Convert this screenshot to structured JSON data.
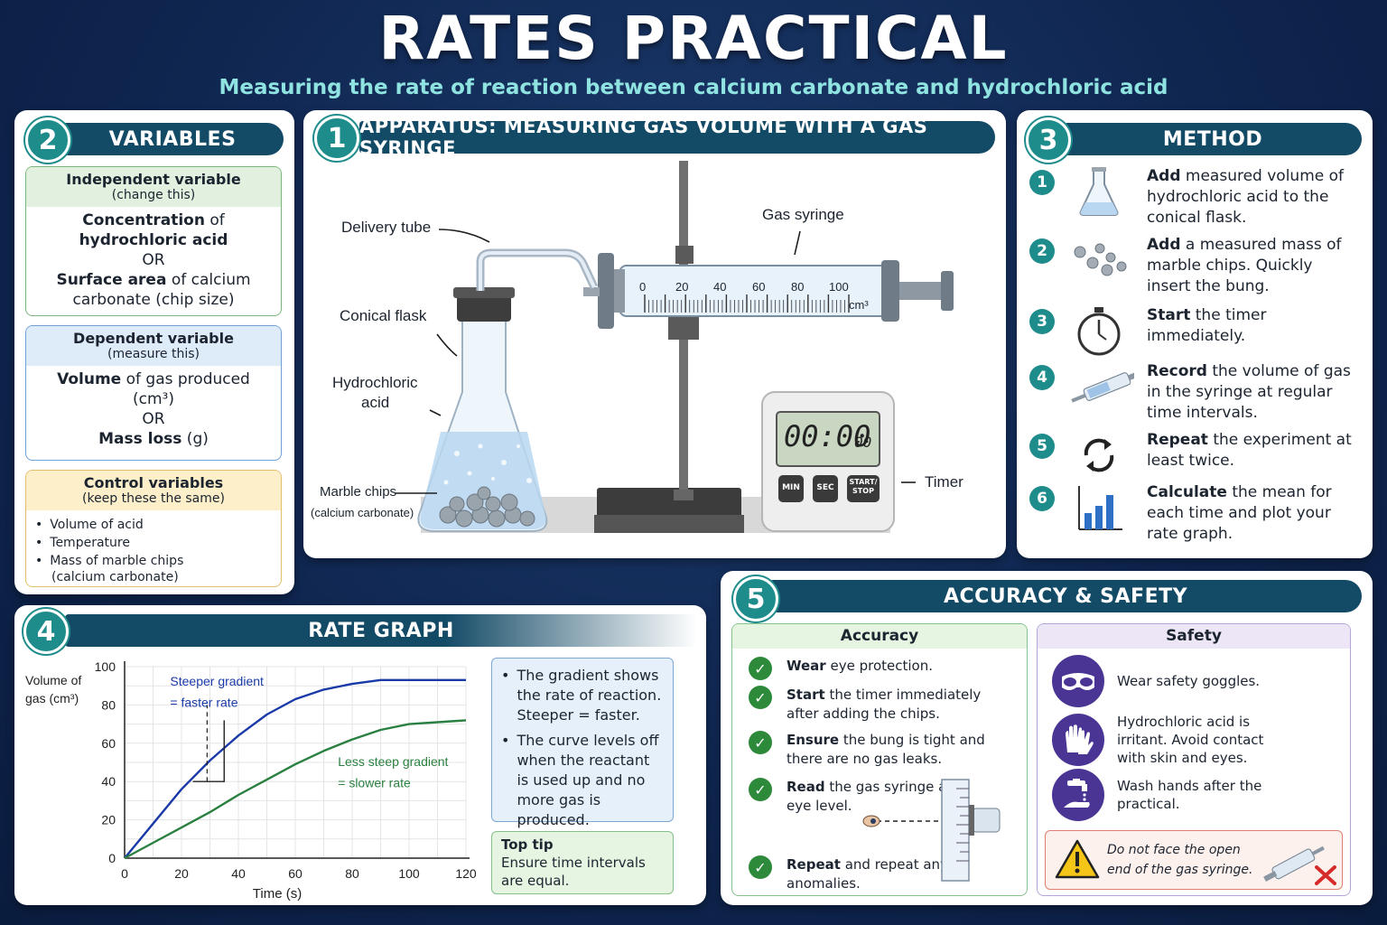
{
  "title": "RATES PRACTICAL",
  "subtitle": "Measuring the rate of reaction between calcium carbonate and hydrochloric acid",
  "variables": {
    "number": "2",
    "heading": "VARIABLES",
    "independent": {
      "title": "Independent variable",
      "sub": "(change this)",
      "l1b": "Concentration",
      "l1": " of",
      "l2b": "hydrochloric acid",
      "l3": "OR",
      "l4b": "Surface area",
      "l4": " of calcium",
      "l5": "carbonate (chip size)"
    },
    "dependent": {
      "title": "Dependent variable",
      "sub": "(measure this)",
      "l1b": "Volume",
      "l1": " of gas produced",
      "l2": "(cm³)",
      "l3": "OR",
      "l4b": "Mass loss",
      "l4": " (g)"
    },
    "control": {
      "title": "Control variables",
      "sub": "(keep these the same)",
      "items": [
        "Volume of acid",
        "Temperature",
        "Mass of marble chips",
        "(calcium carbonate)"
      ]
    }
  },
  "apparatus": {
    "number": "1",
    "heading": "APPARATUS: MEASURING GAS VOLUME WITH A GAS SYRINGE",
    "labels": {
      "delivery_tube": "Delivery tube",
      "gas_syringe": "Gas syringe",
      "conical_flask": "Conical flask",
      "hcl1": "Hydrochloric",
      "hcl2": "acid",
      "marble1": "Marble chips",
      "marble2": "(calcium carbonate)",
      "timer": "Timer"
    },
    "syringe_scale": [
      "0",
      "20",
      "40",
      "60",
      "80",
      "100"
    ],
    "syringe_unit": "cm³",
    "timer_display": "00:00",
    "timer_small": "00",
    "timer_buttons": [
      "MIN",
      "SEC",
      "START/ STOP"
    ]
  },
  "method": {
    "number": "3",
    "heading": "METHOD",
    "steps": [
      {
        "n": "1",
        "bold": "Add",
        "text": " measured volume of hydrochloric acid to the conical flask.",
        "icon": "conical-flask-icon"
      },
      {
        "n": "2",
        "bold": "Add",
        "text": " a measured mass of marble chips. Quickly insert the bung.",
        "icon": "marble-chips-icon"
      },
      {
        "n": "3",
        "bold": "Start",
        "text": " the timer immediately.",
        "icon": "stopwatch-icon"
      },
      {
        "n": "4",
        "bold": "Record",
        "text": " the volume of gas in the syringe at regular time intervals.",
        "icon": "syringe-icon"
      },
      {
        "n": "5",
        "bold": "Repeat",
        "text": " the experiment at least twice.",
        "icon": "repeat-icon"
      },
      {
        "n": "6",
        "bold": "Calculate",
        "text": " the mean for each time and plot your rate graph.",
        "icon": "bar-chart-icon"
      }
    ]
  },
  "rate_graph": {
    "number": "4",
    "heading": "RATE GRAPH",
    "notes": [
      "The gradient shows the rate of reaction. Steeper = faster.",
      "The curve levels off when the reactant is used up and no more gas is produced."
    ],
    "tip_title": "Top tip",
    "tip_text": "Ensure time intervals are equal."
  },
  "chart_data": {
    "type": "line",
    "title": "",
    "xlabel": "Time (s)",
    "ylabel": "Volume of gas (cm³)",
    "xlim": [
      0,
      120
    ],
    "ylim": [
      0,
      100
    ],
    "xticks": [
      0,
      20,
      40,
      60,
      80,
      100,
      120
    ],
    "yticks": [
      0,
      20,
      40,
      60,
      80,
      100
    ],
    "grid": true,
    "series": [
      {
        "name": "Steeper gradient = faster rate",
        "color": "#1a3aa8",
        "x": [
          0,
          10,
          20,
          30,
          40,
          50,
          60,
          70,
          80,
          90,
          100,
          110,
          120
        ],
        "y": [
          0,
          18,
          36,
          51,
          64,
          75,
          83,
          88,
          91,
          93,
          93,
          93,
          93
        ]
      },
      {
        "name": "Less steep gradient = slower rate",
        "color": "#2a8040",
        "x": [
          0,
          10,
          20,
          30,
          40,
          50,
          60,
          70,
          80,
          90,
          100,
          110,
          120
        ],
        "y": [
          0,
          8,
          16,
          24,
          33,
          41,
          49,
          56,
          62,
          67,
          70,
          71,
          72
        ]
      }
    ],
    "annotations": [
      {
        "text1": "Steeper gradient",
        "text2": "= faster rate"
      },
      {
        "text1": "Less steep gradient",
        "text2": "= slower rate"
      }
    ]
  },
  "accuracy_safety": {
    "number": "5",
    "heading": "ACCURACY & SAFETY",
    "accuracy_title": "Accuracy",
    "accuracy": [
      {
        "bold": "Wear",
        "text": " eye protection."
      },
      {
        "bold": "Start",
        "text": " the timer immediately after adding the chips."
      },
      {
        "bold": "Ensure",
        "text": " the bung is tight and there are no gas leaks."
      },
      {
        "bold": "Read",
        "text": " the gas syringe at eye level."
      },
      {
        "bold": "Repeat",
        "text": " and repeat any anomalies."
      }
    ],
    "safety_title": "Safety",
    "safety": [
      {
        "text": "Wear safety goggles.",
        "icon": "goggles-icon"
      },
      {
        "text": "Hydrochloric acid is irritant. Avoid contact with skin and eyes.",
        "icon": "gloves-icon"
      },
      {
        "text": "Wash hands after the practical.",
        "icon": "hand-wash-icon"
      }
    ],
    "warning": "Do not face the open end of the gas syringe."
  }
}
